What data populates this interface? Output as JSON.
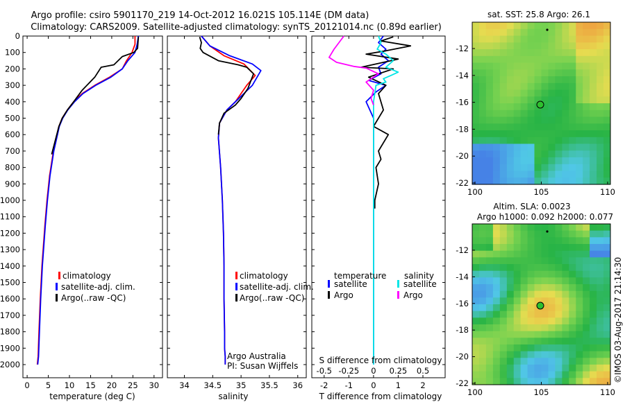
{
  "header": {
    "line1": "Argo profile: csiro 5901170_219 14-Oct-2012 16.021S 105.114E (DM data)",
    "line2": "Climatology: CARS2009. Satellite-adjusted climatology: synTS_20121014.nc (0.89d earlier)"
  },
  "colors": {
    "climatology": "#ff0000",
    "satellite": "#0000ff",
    "argo": "#000000",
    "sat_salinity": "#00e5e5",
    "argo_salinity": "#ff00ff"
  },
  "depth_axis": {
    "ylim": [
      0,
      2080
    ],
    "ticks": [
      0,
      100,
      200,
      300,
      400,
      500,
      600,
      700,
      800,
      900,
      1000,
      1100,
      1200,
      1300,
      1400,
      1500,
      1600,
      1700,
      1800,
      1900,
      2000
    ]
  },
  "chart_data": [
    {
      "type": "line",
      "panel": "temperature",
      "xlabel": "temperature (deg C)",
      "xlim": [
        -1,
        32
      ],
      "xticks": [
        0,
        5,
        10,
        15,
        20,
        25,
        30
      ],
      "ylim": [
        2080,
        0
      ],
      "legend": [
        "climatology",
        "satellite-adj. clim.",
        "Argo(..raw -QC)"
      ],
      "series": [
        {
          "name": "climatology",
          "x": [
            25.5,
            25.5,
            24.8,
            23.5,
            22.5,
            19.5,
            16,
            13,
            11,
            9.5,
            8.3,
            7.5,
            6.2,
            5.3,
            4.7,
            4.2,
            3.5,
            3.1,
            2.8,
            2.6,
            2.4
          ],
          "y": [
            0,
            50,
            100,
            150,
            200,
            250,
            300,
            350,
            400,
            450,
            500,
            550,
            700,
            850,
            1000,
            1150,
            1400,
            1600,
            1800,
            1950,
            2000
          ]
        },
        {
          "name": "satellite-adj. clim.",
          "x": [
            26.3,
            26,
            25.5,
            23.8,
            22.5,
            19.8,
            16.2,
            13.2,
            11.2,
            9.6,
            8.4,
            7.6,
            6.3,
            5.4,
            4.8,
            4.3,
            3.6,
            3.2,
            2.9,
            2.7,
            2.5
          ],
          "y": [
            0,
            50,
            100,
            150,
            200,
            250,
            300,
            350,
            400,
            450,
            500,
            550,
            700,
            850,
            1000,
            1150,
            1400,
            1600,
            1800,
            1950,
            2000
          ]
        },
        {
          "name": "Argo(..raw -QC)",
          "x": [
            26.3,
            26.2,
            26.1,
            25.2,
            22.5,
            20.5,
            17.5,
            16,
            13,
            11,
            9.5,
            8.3,
            7.5,
            6.5,
            5.8
          ],
          "y": [
            5,
            40,
            75,
            100,
            125,
            175,
            190,
            250,
            330,
            400,
            450,
            500,
            550,
            650,
            720
          ]
        }
      ]
    },
    {
      "type": "line",
      "panel": "salinity",
      "xlabel": "salinity",
      "xlim": [
        33.7,
        36.15
      ],
      "xticks": [
        34,
        34.5,
        35,
        35.5,
        36
      ],
      "ylim": [
        2080,
        0
      ],
      "legend": [
        "climatology",
        "satellite-adj. clim.",
        "Argo(..raw -QC)"
      ],
      "annotation": [
        "Argo Australia",
        "PI: Susan Wijffels"
      ],
      "series": [
        {
          "name": "climatology",
          "x": [
            34.3,
            34.45,
            34.7,
            35.05,
            35.25,
            35.1,
            35.0,
            34.9,
            34.75,
            34.62,
            34.6,
            34.64,
            34.67,
            34.69,
            34.7,
            34.7,
            34.71,
            34.71,
            34.72,
            34.72
          ],
          "y": [
            0,
            60,
            120,
            170,
            240,
            300,
            350,
            400,
            450,
            530,
            620,
            800,
            1000,
            1200,
            1400,
            1600,
            1800,
            1900,
            1950,
            2000
          ]
        },
        {
          "name": "satellite-adj. clim.",
          "x": [
            34.3,
            34.45,
            34.8,
            35.2,
            35.35,
            35.2,
            35.05,
            34.9,
            34.75,
            34.62,
            34.6,
            34.64,
            34.67,
            34.69,
            34.7,
            34.7,
            34.71,
            34.71,
            34.72,
            34.72
          ],
          "y": [
            0,
            60,
            120,
            170,
            210,
            300,
            350,
            400,
            450,
            530,
            620,
            800,
            1000,
            1200,
            1400,
            1600,
            1800,
            1900,
            1950,
            2000
          ]
        },
        {
          "name": "Argo(..raw -QC)",
          "x": [
            34.27,
            34.3,
            34.28,
            34.33,
            34.6,
            34.95,
            35.1,
            35.22,
            35.12,
            35.0,
            34.9,
            34.7,
            34.62,
            34.6
          ],
          "y": [
            5,
            40,
            75,
            100,
            150,
            175,
            190,
            230,
            320,
            380,
            420,
            470,
            530,
            600
          ]
        }
      ]
    },
    {
      "type": "line",
      "panel": "difference",
      "xlabel": "T difference from climatology",
      "title_top": "S difference from climatology",
      "xlim": [
        -2.5,
        2.9
      ],
      "xticks": [
        -2,
        -1,
        0,
        1,
        2
      ],
      "top_ticks": [
        "-0.5",
        "-0.25",
        "0",
        "0.25",
        "0.5"
      ],
      "ylim": [
        2080,
        0
      ],
      "legend_groups": {
        "temperature": "temperature",
        "salinity": "salinity",
        "satellite": "satellite",
        "argo": "Argo"
      },
      "series": [
        {
          "name": "temperature satellite",
          "x": [
            0.4,
            0.2,
            0.5,
            0.3,
            0.6,
            0.2,
            0.3,
            -0.2,
            0.5,
            0.1,
            -0.3,
            0,
            0,
            0,
            0,
            0
          ],
          "y": [
            0,
            40,
            80,
            110,
            150,
            190,
            230,
            270,
            300,
            340,
            400,
            500,
            800,
            1200,
            1600,
            2000
          ]
        },
        {
          "name": "temperature Argo",
          "x": [
            0.8,
            0.3,
            1.5,
            0.5,
            -0.3,
            1.0,
            -0.5,
            0.8,
            -0.2,
            0.5,
            0.2,
            0.4,
            0,
            0.6,
            0.2,
            0.3,
            0.1,
            0.2,
            0.05,
            0.05
          ],
          "y": [
            5,
            30,
            60,
            90,
            110,
            140,
            190,
            200,
            250,
            300,
            350,
            450,
            550,
            600,
            700,
            750,
            800,
            900,
            1000,
            1050
          ]
        },
        {
          "name": "salinity satellite",
          "x": [
            0.2,
            0.3,
            0.15,
            0.5,
            0.8,
            0.5,
            1.0,
            0.7,
            0.4,
            0.5,
            0.1,
            0.05,
            0,
            0,
            0
          ],
          "y": [
            0,
            40,
            80,
            110,
            150,
            190,
            220,
            240,
            260,
            280,
            300,
            350,
            400,
            800,
            2000
          ]
        },
        {
          "name": "salinity Argo",
          "x": [
            -1.2,
            -1.4,
            -1.6,
            -1.8,
            -1.5,
            -0.8,
            -0.3,
            0.2,
            -0.3,
            0,
            -0.1,
            0
          ],
          "y": [
            0,
            40,
            80,
            130,
            160,
            185,
            195,
            230,
            280,
            330,
            380,
            420
          ]
        }
      ]
    }
  ],
  "maps": {
    "sst": {
      "title": "sat. SST: 25.8 Argo: 26.1",
      "xticks": [
        "100",
        "105",
        "110"
      ],
      "yticks": [
        "-12",
        "-14",
        "-16",
        "-18",
        "-20",
        "-22"
      ]
    },
    "sla": {
      "title1": "Altim. SLA: 0.0023",
      "title2": "Argo h1000: 0.092 h2000: 0.077",
      "xticks": [
        "100",
        "105",
        "110"
      ],
      "yticks": [
        "-12",
        "-14",
        "-16",
        "-18",
        "-20",
        "-22"
      ]
    }
  },
  "footer": {
    "stamp": "©IMOS 03-Aug-2017 21:14:30"
  }
}
